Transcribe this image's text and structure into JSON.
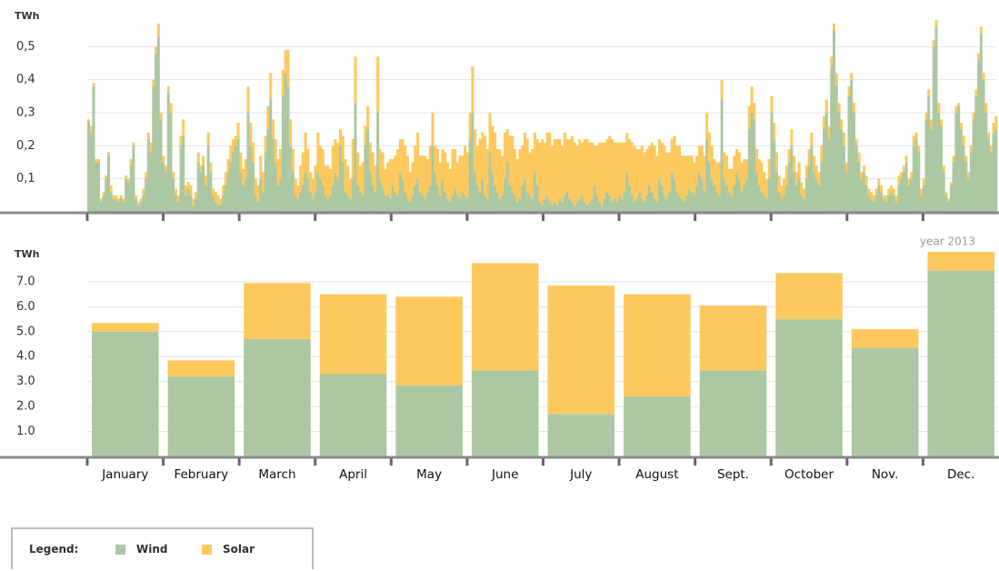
{
  "chart_data": [
    {
      "type": "bar",
      "stacked": true,
      "ylabel": "TWh",
      "ylim": [
        0,
        0.6
      ],
      "yticks": [
        {
          "value": 0.1,
          "label": "0,1"
        },
        {
          "value": 0.2,
          "label": "0,2"
        },
        {
          "value": 0.3,
          "label": "0,3"
        },
        {
          "value": 0.4,
          "label": "0,4"
        },
        {
          "value": 0.5,
          "label": "0,5"
        }
      ],
      "grid": true,
      "series": [
        {
          "name": "Wind",
          "color": "#abc8a2",
          "values": [
            0.27,
            0.24,
            0.38,
            0.15,
            0.15,
            0.03,
            0.05,
            0.1,
            0.17,
            0.06,
            0.04,
            0.04,
            0.03,
            0.04,
            0.03,
            0.1,
            0.09,
            0.14,
            0.2,
            0.04,
            0.02,
            0.03,
            0.05,
            0.1,
            0.22,
            0.18,
            0.38,
            0.48,
            0.53,
            0.28,
            0.15,
            0.12,
            0.36,
            0.3,
            0.1,
            0.05,
            0.03,
            0.2,
            0.23,
            0.05,
            0.07,
            0.05,
            0.02,
            0.04,
            0.15,
            0.12,
            0.14,
            0.08,
            0.2,
            0.12,
            0.05,
            0.03,
            0.02,
            0.02,
            0.05,
            0.08,
            0.12,
            0.15,
            0.18,
            0.2,
            0.22,
            0.12,
            0.08,
            0.1,
            0.3,
            0.2,
            0.15,
            0.05,
            0.03,
            0.1,
            0.06,
            0.18,
            0.25,
            0.34,
            0.22,
            0.15,
            0.08,
            0.1,
            0.35,
            0.42,
            0.38,
            0.2,
            0.12,
            0.05,
            0.04,
            0.06,
            0.08,
            0.12,
            0.1,
            0.06,
            0.04,
            0.06,
            0.12,
            0.1,
            0.08,
            0.05,
            0.04,
            0.05,
            0.08,
            0.12,
            0.1,
            0.2,
            0.15,
            0.06,
            0.05,
            0.04,
            0.1,
            0.33,
            0.08,
            0.06,
            0.05,
            0.2,
            0.25,
            0.12,
            0.08,
            0.06,
            0.3,
            0.1,
            0.07,
            0.05,
            0.05,
            0.04,
            0.08,
            0.06,
            0.05,
            0.12,
            0.1,
            0.06,
            0.04,
            0.03,
            0.05,
            0.08,
            0.1,
            0.06,
            0.05,
            0.04,
            0.06,
            0.08,
            0.2,
            0.12,
            0.08,
            0.05,
            0.1,
            0.06,
            0.04,
            0.03,
            0.05,
            0.07,
            0.05,
            0.04,
            0.06,
            0.05,
            0.04,
            0.22,
            0.3,
            0.12,
            0.08,
            0.06,
            0.1,
            0.05,
            0.04,
            0.18,
            0.12,
            0.08,
            0.06,
            0.04,
            0.05,
            0.1,
            0.15,
            0.08,
            0.06,
            0.05,
            0.03,
            0.04,
            0.08,
            0.1,
            0.06,
            0.05,
            0.04,
            0.12,
            0.08,
            0.03,
            0.02,
            0.04,
            0.05,
            0.03,
            0.02,
            0.03,
            0.02,
            0.04,
            0.03,
            0.05,
            0.06,
            0.04,
            0.03,
            0.02,
            0.03,
            0.04,
            0.05,
            0.03,
            0.02,
            0.03,
            0.04,
            0.08,
            0.05,
            0.03,
            0.02,
            0.04,
            0.06,
            0.05,
            0.03,
            0.04,
            0.03,
            0.05,
            0.04,
            0.06,
            0.12,
            0.08,
            0.05,
            0.03,
            0.04,
            0.06,
            0.04,
            0.03,
            0.05,
            0.08,
            0.06,
            0.04,
            0.03,
            0.1,
            0.08,
            0.05,
            0.04,
            0.06,
            0.12,
            0.1,
            0.06,
            0.05,
            0.04,
            0.03,
            0.05,
            0.07,
            0.06,
            0.05,
            0.08,
            0.12,
            0.1,
            0.06,
            0.22,
            0.15,
            0.1,
            0.08,
            0.06,
            0.05,
            0.34,
            0.1,
            0.08,
            0.06,
            0.05,
            0.08,
            0.12,
            0.1,
            0.06,
            0.08,
            0.1,
            0.25,
            0.3,
            0.28,
            0.12,
            0.08,
            0.06,
            0.05,
            0.04,
            0.1,
            0.3,
            0.22,
            0.12,
            0.06,
            0.04,
            0.05,
            0.08,
            0.15,
            0.2,
            0.12,
            0.08,
            0.1,
            0.05,
            0.04,
            0.1,
            0.14,
            0.2,
            0.12,
            0.1,
            0.08,
            0.15,
            0.25,
            0.3,
            0.22,
            0.44,
            0.55,
            0.38,
            0.3,
            0.25,
            0.2,
            0.12,
            0.35,
            0.4,
            0.3,
            0.2,
            0.15,
            0.1,
            0.12,
            0.08,
            0.05,
            0.04,
            0.03,
            0.05,
            0.08,
            0.06,
            0.04,
            0.03,
            0.05,
            0.06,
            0.05,
            0.03,
            0.08,
            0.1,
            0.12,
            0.15,
            0.08,
            0.1,
            0.2,
            0.22,
            0.18,
            0.05,
            0.08,
            0.28,
            0.35,
            0.25,
            0.5,
            0.56,
            0.3,
            0.26,
            0.12,
            0.05,
            0.03,
            0.08,
            0.15,
            0.3,
            0.32,
            0.25,
            0.2,
            0.15,
            0.1,
            0.18,
            0.28,
            0.35,
            0.46,
            0.54,
            0.4,
            0.3,
            0.22,
            0.18,
            0.24,
            0.25
          ]
        },
        {
          "name": "Solar",
          "color": "#fdc95e",
          "values": [
            0.01,
            0.02,
            0.01,
            0.01,
            0.01,
            0.01,
            0.01,
            0.01,
            0.01,
            0.02,
            0.01,
            0.01,
            0.01,
            0.01,
            0.01,
            0.01,
            0.01,
            0.02,
            0.01,
            0.01,
            0.01,
            0.01,
            0.02,
            0.02,
            0.02,
            0.03,
            0.02,
            0.02,
            0.04,
            0.02,
            0.02,
            0.02,
            0.02,
            0.03,
            0.02,
            0.02,
            0.02,
            0.03,
            0.05,
            0.03,
            0.02,
            0.03,
            0.02,
            0.02,
            0.03,
            0.02,
            0.03,
            0.03,
            0.04,
            0.03,
            0.02,
            0.03,
            0.03,
            0.02,
            0.03,
            0.04,
            0.04,
            0.05,
            0.04,
            0.03,
            0.05,
            0.06,
            0.05,
            0.06,
            0.08,
            0.07,
            0.06,
            0.05,
            0.05,
            0.07,
            0.06,
            0.05,
            0.07,
            0.08,
            0.06,
            0.07,
            0.08,
            0.09,
            0.08,
            0.07,
            0.11,
            0.08,
            0.07,
            0.05,
            0.04,
            0.08,
            0.1,
            0.12,
            0.09,
            0.06,
            0.06,
            0.08,
            0.12,
            0.1,
            0.11,
            0.09,
            0.1,
            0.08,
            0.12,
            0.1,
            0.11,
            0.05,
            0.08,
            0.1,
            0.09,
            0.06,
            0.12,
            0.14,
            0.1,
            0.08,
            0.1,
            0.06,
            0.07,
            0.09,
            0.1,
            0.08,
            0.17,
            0.09,
            0.11,
            0.08,
            0.1,
            0.12,
            0.08,
            0.11,
            0.14,
            0.1,
            0.12,
            0.14,
            0.13,
            0.09,
            0.1,
            0.12,
            0.14,
            0.11,
            0.12,
            0.13,
            0.1,
            0.12,
            0.1,
            0.08,
            0.11,
            0.1,
            0.09,
            0.12,
            0.11,
            0.1,
            0.14,
            0.12,
            0.1,
            0.13,
            0.11,
            0.15,
            0.14,
            0.08,
            0.14,
            0.13,
            0.12,
            0.16,
            0.14,
            0.18,
            0.15,
            0.12,
            0.14,
            0.16,
            0.13,
            0.15,
            0.12,
            0.14,
            0.1,
            0.15,
            0.17,
            0.14,
            0.13,
            0.15,
            0.12,
            0.14,
            0.16,
            0.13,
            0.15,
            0.12,
            0.14,
            0.18,
            0.2,
            0.17,
            0.19,
            0.21,
            0.18,
            0.19,
            0.2,
            0.18,
            0.17,
            0.19,
            0.16,
            0.18,
            0.2,
            0.19,
            0.17,
            0.18,
            0.16,
            0.19,
            0.2,
            0.18,
            0.17,
            0.12,
            0.15,
            0.18,
            0.19,
            0.17,
            0.16,
            0.18,
            0.19,
            0.17,
            0.18,
            0.16,
            0.17,
            0.15,
            0.12,
            0.14,
            0.16,
            0.17,
            0.15,
            0.13,
            0.16,
            0.15,
            0.14,
            0.12,
            0.15,
            0.16,
            0.14,
            0.12,
            0.13,
            0.15,
            0.14,
            0.12,
            0.1,
            0.13,
            0.14,
            0.15,
            0.13,
            0.14,
            0.12,
            0.1,
            0.11,
            0.1,
            0.09,
            0.08,
            0.1,
            0.11,
            0.08,
            0.09,
            0.1,
            0.08,
            0.09,
            0.1,
            0.06,
            0.08,
            0.09,
            0.07,
            0.08,
            0.09,
            0.07,
            0.08,
            0.09,
            0.08,
            0.06,
            0.07,
            0.08,
            0.05,
            0.07,
            0.08,
            0.09,
            0.07,
            0.06,
            0.06,
            0.05,
            0.05,
            0.06,
            0.05,
            0.04,
            0.05,
            0.06,
            0.04,
            0.05,
            0.05,
            0.04,
            0.05,
            0.04,
            0.03,
            0.04,
            0.05,
            0.04,
            0.05,
            0.04,
            0.04,
            0.05,
            0.04,
            0.04,
            0.04,
            0.03,
            0.02,
            0.04,
            0.03,
            0.03,
            0.04,
            0.03,
            0.03,
            0.02,
            0.03,
            0.02,
            0.03,
            0.02,
            0.02,
            0.03,
            0.02,
            0.02,
            0.02,
            0.02,
            0.02,
            0.02,
            0.01,
            0.02,
            0.02,
            0.02,
            0.02,
            0.02,
            0.03,
            0.02,
            0.02,
            0.02,
            0.02,
            0.02,
            0.03,
            0.02,
            0.02,
            0.02,
            0.02,
            0.02,
            0.02,
            0.03,
            0.02,
            0.02,
            0.03,
            0.02,
            0.02,
            0.01,
            0.01,
            0.01,
            0.02,
            0.02,
            0.01,
            0.02,
            0.03,
            0.02,
            0.02,
            0.02,
            0.02,
            0.02,
            0.02,
            0.02,
            0.02,
            0.03,
            0.02,
            0.02,
            0.03,
            0.04
          ]
        }
      ]
    },
    {
      "type": "bar",
      "stacked": true,
      "ylabel": "TWh",
      "annotation": "year 2013",
      "ylim": [
        0,
        8.2
      ],
      "yticks": [
        {
          "value": 1,
          "label": "1.0"
        },
        {
          "value": 2,
          "label": "2.0"
        },
        {
          "value": 3,
          "label": "3.0"
        },
        {
          "value": 4,
          "label": "4.0"
        },
        {
          "value": 5,
          "label": "5.0"
        },
        {
          "value": 6,
          "label": "6.0"
        },
        {
          "value": 7,
          "label": "7.0"
        }
      ],
      "grid": true,
      "categories": [
        "January",
        "February",
        "March",
        "April",
        "May",
        "June",
        "July",
        "August",
        "Sept.",
        "October",
        "Nov.",
        "Dec."
      ],
      "series": [
        {
          "name": "Wind",
          "color": "#abc8a2",
          "values": [
            5.0,
            3.2,
            4.7,
            3.3,
            2.85,
            3.45,
            1.7,
            2.4,
            3.45,
            5.5,
            4.35,
            7.45
          ]
        },
        {
          "name": "Solar",
          "color": "#fdc95e",
          "values": [
            0.35,
            0.65,
            2.25,
            3.2,
            3.55,
            4.3,
            5.15,
            4.1,
            2.6,
            1.85,
            0.75,
            0.75
          ]
        }
      ]
    }
  ],
  "legend": {
    "title": "Legend:"
  }
}
